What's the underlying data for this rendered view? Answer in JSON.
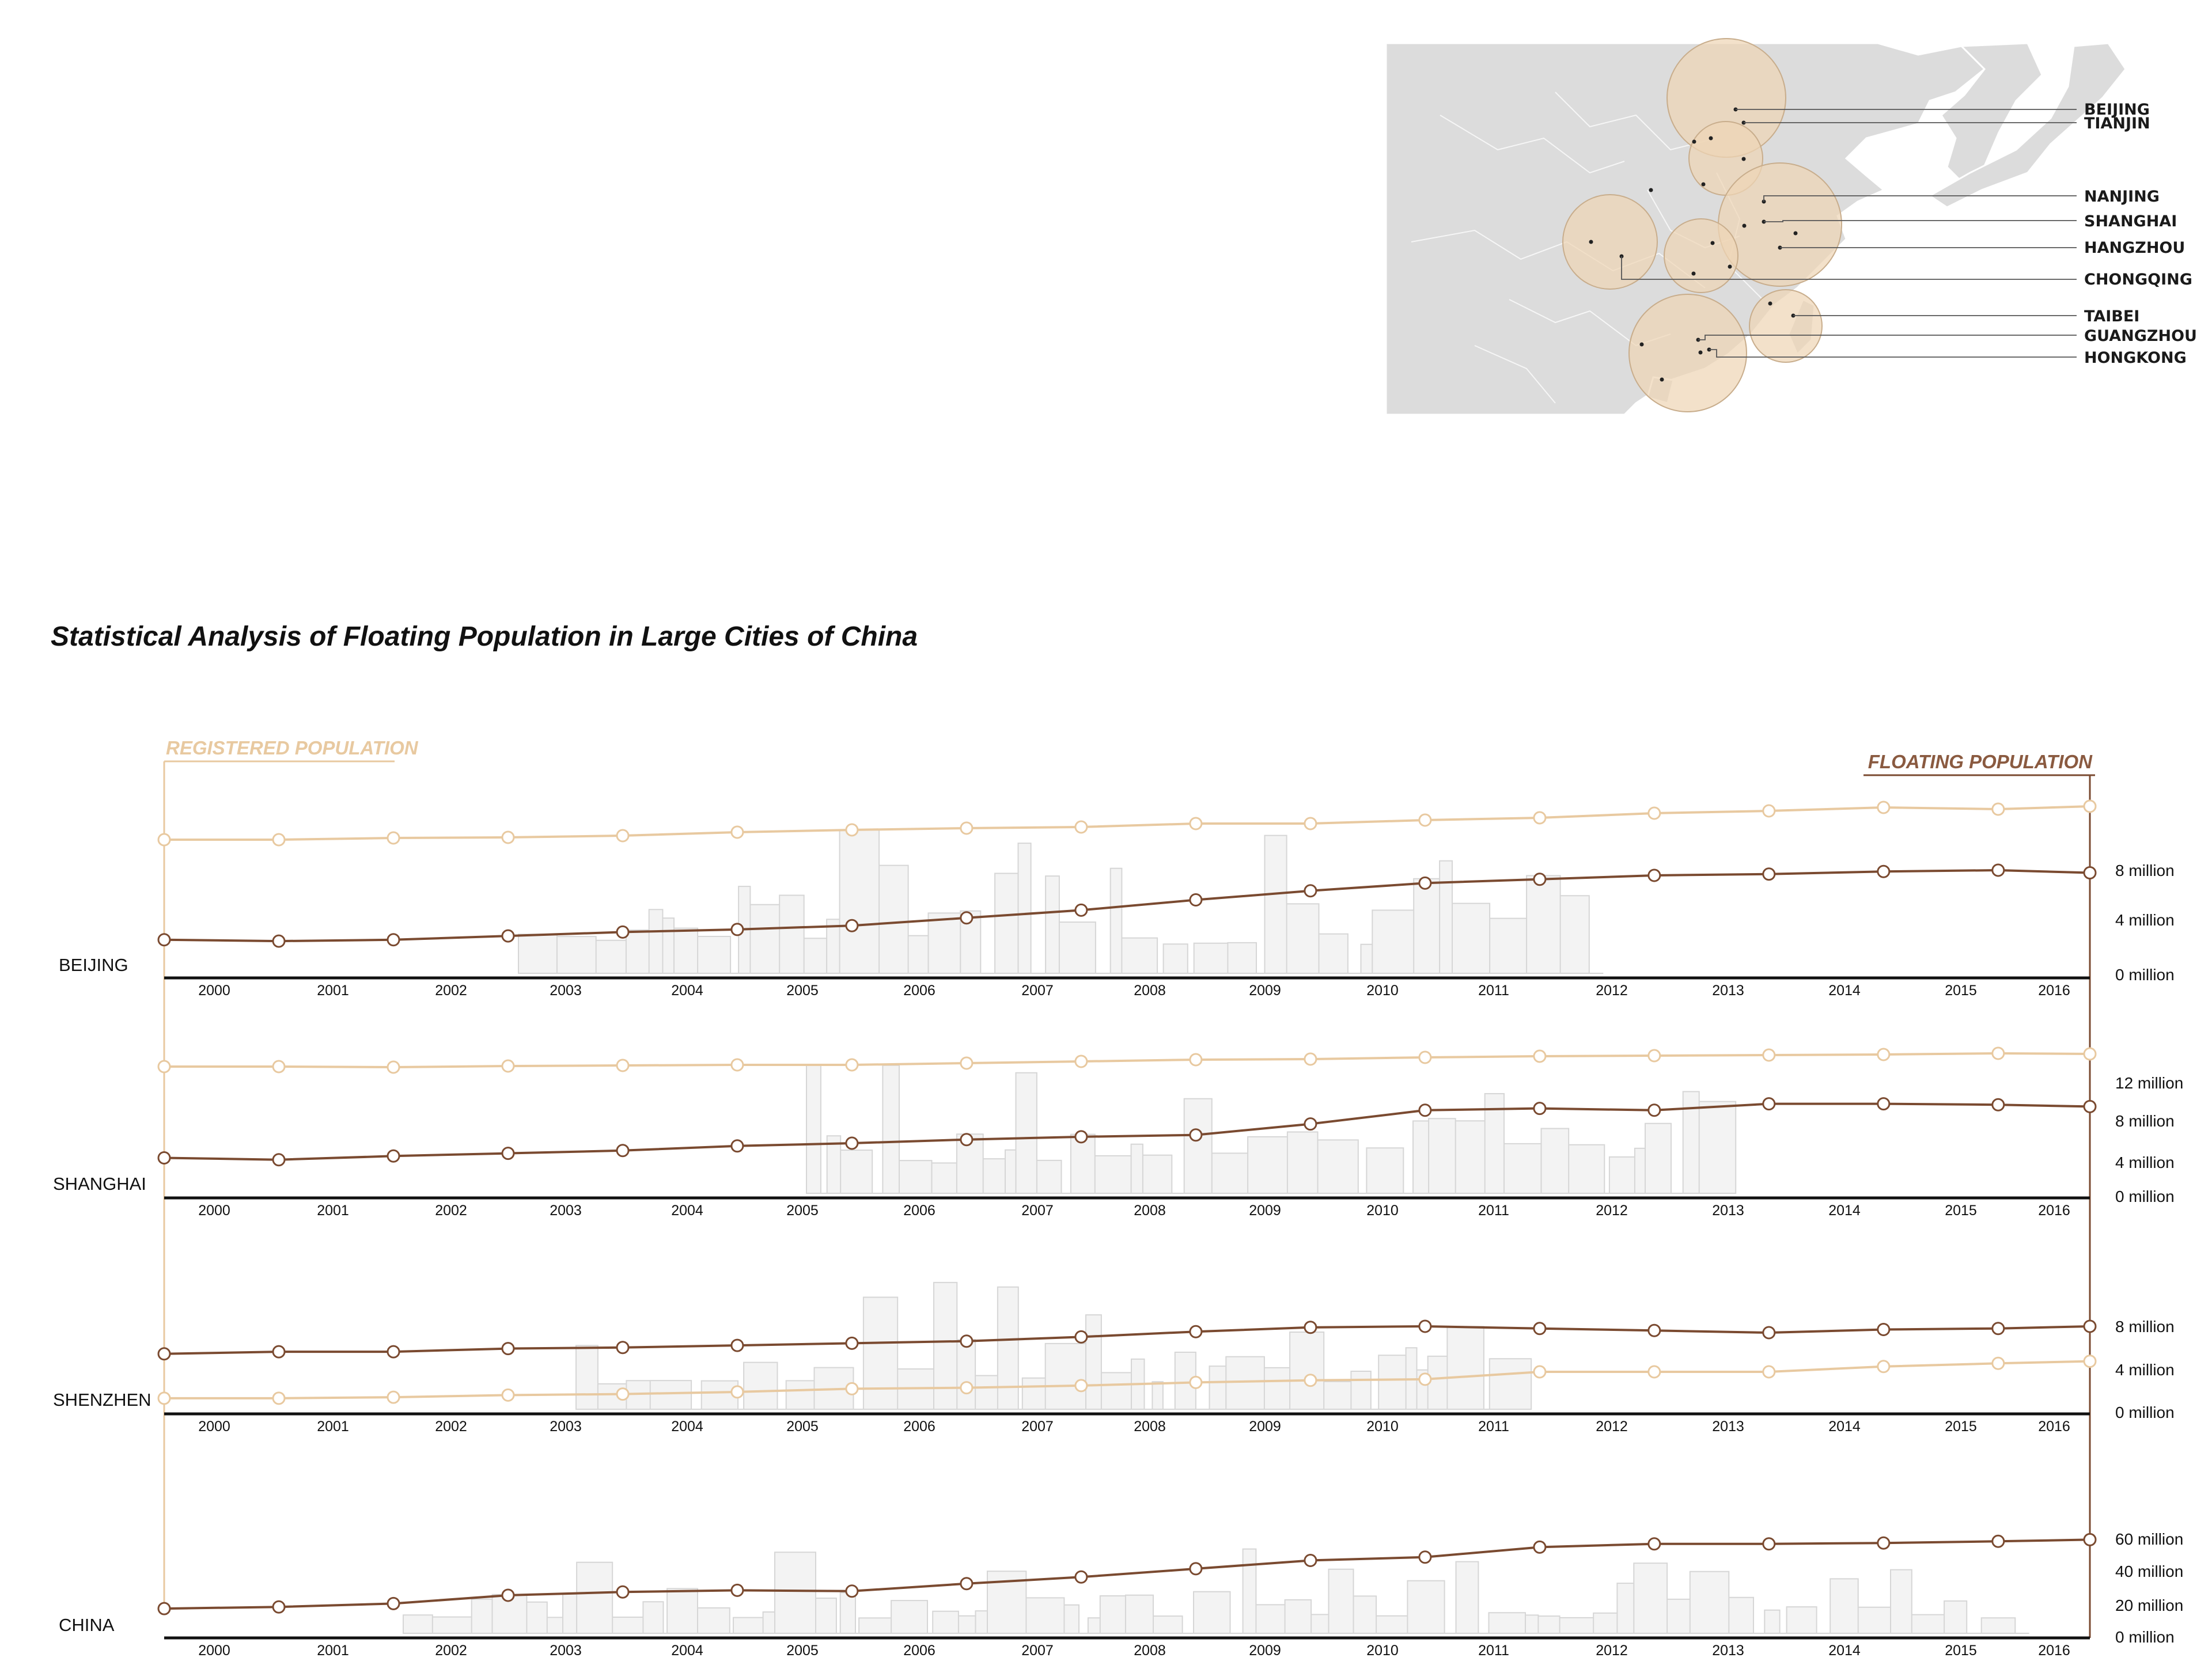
{
  "title": "Statistical Analysis of Floating Population in Large Cities of China",
  "legend": {
    "registered": "REGISTERED POPULATION",
    "floating": "FLOATING POPULATION"
  },
  "colors": {
    "registered": "#e8c9a0",
    "floating": "#7a4a30",
    "skyline": "#f3f3f3",
    "skyline_stroke": "#d6d6d6",
    "land": "#dcdcdc",
    "bubble": "#efd6b5"
  },
  "map": {
    "cities": [
      {
        "name": "BEIJING"
      },
      {
        "name": "TIANJIN"
      },
      {
        "name": "NANJING"
      },
      {
        "name": "SHANGHAI"
      },
      {
        "name": "HANGZHOU"
      },
      {
        "name": "CHONGQING"
      },
      {
        "name": "TAIBEI"
      },
      {
        "name": "GUANGZHOU"
      },
      {
        "name": "HONGKONG"
      }
    ]
  },
  "chart_data": [
    {
      "type": "line",
      "region": "BEIJING",
      "x": [
        1999.5,
        2000.5,
        2001.5,
        2002.5,
        2003.5,
        2004.5,
        2005.5,
        2006.5,
        2007.5,
        2008.5,
        2009.5,
        2010.5,
        2011.5,
        2012.5,
        2013.5,
        2014.5,
        2015.5,
        2016.3
      ],
      "years": [
        "2000",
        "2001",
        "2002",
        "2003",
        "2004",
        "2005",
        "2006",
        "2007",
        "2008",
        "2009",
        "2010",
        "2011",
        "2012",
        "2013",
        "2014",
        "2015",
        "2016"
      ],
      "y_ticks": [
        "0 million",
        "4 million",
        "8 million"
      ],
      "series": [
        {
          "key": "registered",
          "values": [
            1.0,
            1.0,
            1.0,
            1.0,
            1.0,
            1.0,
            1.0,
            1.0,
            1.0,
            1.0,
            1.0,
            1.0,
            1.0,
            1.0,
            1.0,
            1.0,
            1.0,
            1.0
          ]
        },
        {
          "key": "floating",
          "values": [
            2.6,
            2.5,
            2.6,
            2.9,
            3.2,
            3.4,
            3.7,
            4.3,
            4.9,
            5.7,
            6.4,
            7.0,
            7.3,
            7.6,
            7.7,
            7.9,
            8.0,
            7.8
          ]
        }
      ]
    },
    {
      "type": "line",
      "region": "SHANGHAI",
      "x": [
        1999.5,
        2000.5,
        2001.5,
        2002.5,
        2003.5,
        2004.5,
        2005.5,
        2006.5,
        2007.5,
        2008.5,
        2009.5,
        2010.5,
        2011.5,
        2012.5,
        2013.5,
        2014.5,
        2015.5,
        2016.3
      ],
      "years": [
        "2000",
        "2001",
        "2002",
        "2003",
        "2004",
        "2005",
        "2006",
        "2007",
        "2008",
        "2009",
        "2010",
        "2011",
        "2012",
        "2013",
        "2014",
        "2015",
        "2016"
      ],
      "y_ticks": [
        "0 million",
        "4 million",
        "8 million",
        "12 million"
      ],
      "series": [
        {
          "key": "registered",
          "values": [
            1.0,
            1.0,
            1.0,
            1.0,
            1.0,
            1.0,
            1.0,
            1.0,
            1.0,
            1.0,
            1.0,
            1.0,
            1.0,
            1.0,
            1.0,
            1.0,
            1.0,
            1.0
          ]
        },
        {
          "key": "floating",
          "values": [
            3.8,
            3.6,
            4.0,
            4.3,
            4.6,
            5.1,
            5.4,
            5.8,
            6.1,
            6.3,
            7.5,
            9.0,
            9.2,
            9.0,
            9.7,
            9.7,
            9.6,
            9.4
          ]
        }
      ]
    },
    {
      "type": "line",
      "region": "SHENZHEN",
      "x": [
        1999.5,
        2000.5,
        2001.5,
        2002.5,
        2003.5,
        2004.5,
        2005.5,
        2006.5,
        2007.5,
        2008.5,
        2009.5,
        2010.5,
        2011.5,
        2012.5,
        2013.5,
        2014.5,
        2015.5,
        2016.3
      ],
      "years": [
        "2000",
        "2001",
        "2002",
        "2003",
        "2004",
        "2005",
        "2006",
        "2007",
        "2008",
        "2009",
        "2010",
        "2011",
        "2012",
        "2013",
        "2014",
        "2015",
        "2016"
      ],
      "y_ticks": [
        "0 million",
        "4 million",
        "8 million"
      ],
      "series": [
        {
          "key": "registered",
          "values": [
            1.2,
            1.2,
            1.3,
            1.5,
            1.6,
            1.8,
            2.1,
            2.2,
            2.4,
            2.7,
            2.9,
            3.0,
            3.7,
            3.7,
            3.7,
            4.2,
            4.5,
            4.7
          ]
        },
        {
          "key": "floating",
          "values": [
            5.4,
            5.6,
            5.6,
            5.9,
            6.0,
            6.2,
            6.4,
            6.6,
            7.0,
            7.5,
            7.9,
            8.0,
            7.8,
            7.6,
            7.4,
            7.7,
            7.8,
            8.0
          ]
        }
      ]
    },
    {
      "type": "line",
      "region": "CHINA",
      "x": [
        1999.5,
        2000.5,
        2001.5,
        2002.5,
        2003.5,
        2004.5,
        2005.5,
        2006.5,
        2007.5,
        2008.5,
        2009.5,
        2010.5,
        2011.5,
        2012.5,
        2013.5,
        2014.5,
        2015.5,
        2016.3
      ],
      "years": [
        "2000",
        "2001",
        "2002",
        "2003",
        "2004",
        "2005",
        "2006",
        "2007",
        "2008",
        "2009",
        "2010",
        "2011",
        "2012",
        "2013",
        "2014",
        "2015",
        "2016"
      ],
      "y_ticks": [
        "0 million",
        "20 million",
        "40 million",
        "60 million"
      ],
      "series": [
        {
          "key": "floating",
          "values": [
            18,
            19,
            21,
            26,
            28,
            29,
            28.5,
            33,
            37,
            42,
            47,
            49,
            55,
            57,
            57,
            57.5,
            58.5,
            59.5
          ]
        }
      ]
    }
  ]
}
